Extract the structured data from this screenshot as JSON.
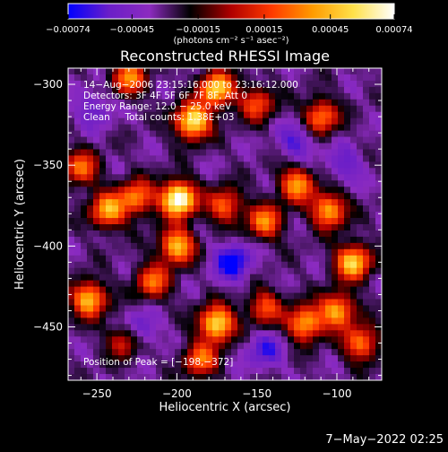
{
  "chart_data": {
    "type": "heatmap",
    "title": "Reconstructed RHESSI Image",
    "xlabel": "Heliocentric X (arcsec)",
    "ylabel": "Heliocentric Y (arcsec)",
    "xlim": [
      -268,
      -72
    ],
    "ylim": [
      -483,
      -290
    ],
    "x_ticks": [
      -250,
      -200,
      -150,
      -100
    ],
    "x_tick_labels": [
      "−250",
      "−200",
      "−150",
      "−100"
    ],
    "y_ticks": [
      -300,
      -350,
      -400,
      -450
    ],
    "y_tick_labels": [
      "−300",
      "−350",
      "−400",
      "−450"
    ],
    "colorbar": {
      "min": -0.00074,
      "max": 0.00074,
      "ticks": [
        -0.00074,
        -0.00045,
        -0.00015,
        0.00015,
        0.00045,
        0.00074
      ],
      "tick_labels": [
        "−0.00074",
        "−0.00045",
        "−0.00015",
        "0.00015",
        "0.00045",
        "0.00074"
      ],
      "units": "(photons cm⁻² s⁻¹ asec⁻²)",
      "colors": [
        "#0000ff",
        "#6a1ec8",
        "#8c2bbf",
        "#000000",
        "#b00000",
        "#ff3a00",
        "#ff9b00",
        "#ffe14a",
        "#ffffff"
      ]
    },
    "annotations": [
      "14−Aug−2006 23:15:16.000 to 23:16:12.000",
      "Detectors: 3F 4F 5F 6F 7F 8F, Att 0",
      "Energy Range: 12.0 − 25.0 keV",
      "Clean     Total counts: 1.38E+03"
    ],
    "peak_label": "Position of Peak = [−198,−372]",
    "peak": [
      -198,
      -372
    ],
    "hot_spots": [
      {
        "x": -199,
        "y": -371,
        "v": 1.0
      },
      {
        "x": -190,
        "y": -323,
        "v": 0.85
      },
      {
        "x": -175,
        "y": -303,
        "v": 0.75
      },
      {
        "x": -230,
        "y": -296,
        "v": 0.55
      },
      {
        "x": -110,
        "y": -320,
        "v": 0.55
      },
      {
        "x": -150,
        "y": -312,
        "v": 0.45
      },
      {
        "x": -243,
        "y": -378,
        "v": 0.65
      },
      {
        "x": -225,
        "y": -370,
        "v": 0.55
      },
      {
        "x": -170,
        "y": -375,
        "v": 0.5
      },
      {
        "x": -145,
        "y": -385,
        "v": 0.55
      },
      {
        "x": -125,
        "y": -362,
        "v": 0.6
      },
      {
        "x": -105,
        "y": -378,
        "v": 0.65
      },
      {
        "x": -200,
        "y": -400,
        "v": 0.7
      },
      {
        "x": -215,
        "y": -422,
        "v": 0.5
      },
      {
        "x": -255,
        "y": -433,
        "v": 0.7
      },
      {
        "x": -232,
        "y": -458,
        "v": 0.5
      },
      {
        "x": -175,
        "y": -448,
        "v": 0.8
      },
      {
        "x": -185,
        "y": -470,
        "v": 0.5
      },
      {
        "x": -145,
        "y": -438,
        "v": 0.45
      },
      {
        "x": -120,
        "y": -448,
        "v": 0.65
      },
      {
        "x": -90,
        "y": -410,
        "v": 0.75
      },
      {
        "x": -100,
        "y": -440,
        "v": 0.65
      },
      {
        "x": -85,
        "y": -460,
        "v": 0.55
      },
      {
        "x": -260,
        "y": -352,
        "v": 0.5
      }
    ],
    "cold_spots": [
      {
        "x": -165,
        "y": -410,
        "v": 0.9
      },
      {
        "x": -225,
        "y": -453,
        "v": 0.8
      },
      {
        "x": -125,
        "y": -335,
        "v": 0.6
      },
      {
        "x": -145,
        "y": -465,
        "v": 0.6
      },
      {
        "x": -252,
        "y": -315,
        "v": 0.5
      },
      {
        "x": -95,
        "y": -350,
        "v": 0.5
      }
    ]
  },
  "footer": {
    "date_stamp": "7−May−2022 02:25"
  }
}
